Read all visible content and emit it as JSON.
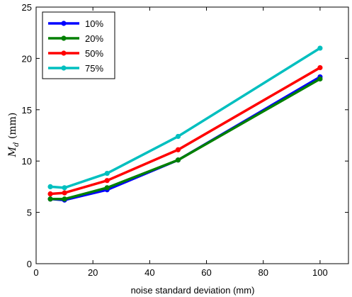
{
  "chart_data": {
    "type": "line",
    "title": "",
    "xlabel": "noise standard deviation (mm)",
    "ylabel_main": "M",
    "ylabel_sub": "d",
    "ylabel_unit": " (mm)",
    "xlim": [
      0,
      110
    ],
    "ylim": [
      0,
      25
    ],
    "xticks": [
      0,
      20,
      40,
      60,
      80,
      100
    ],
    "yticks": [
      0,
      5,
      10,
      15,
      20,
      25
    ],
    "grid": false,
    "legend_position": "top-left",
    "x": [
      5,
      10,
      25,
      50,
      100
    ],
    "series": [
      {
        "name": "10%",
        "color": "#0000ff",
        "values": [
          6.3,
          6.2,
          7.2,
          10.1,
          18.2
        ]
      },
      {
        "name": "20%",
        "color": "#008000",
        "values": [
          6.3,
          6.3,
          7.4,
          10.1,
          18.0
        ]
      },
      {
        "name": "50%",
        "color": "#ff0000",
        "values": [
          6.8,
          6.9,
          8.1,
          11.1,
          19.1
        ]
      },
      {
        "name": "75%",
        "color": "#00bfbf",
        "values": [
          7.5,
          7.4,
          8.8,
          12.4,
          21.0
        ]
      }
    ]
  }
}
